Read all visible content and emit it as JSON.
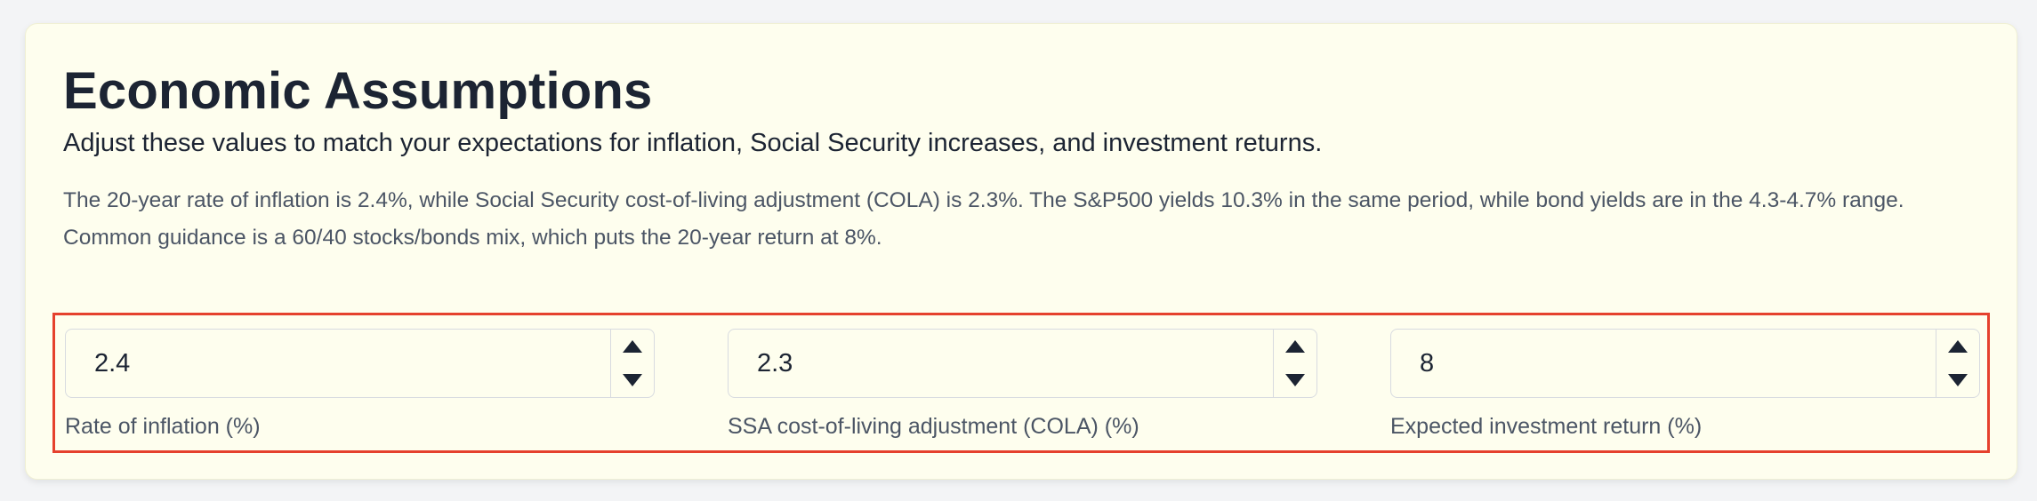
{
  "section": {
    "title": "Economic Assumptions",
    "subtitle": "Adjust these values to match your expectations for inflation, Social Security increases, and investment returns.",
    "description": "The 20-year rate of inflation is 2.4%, while Social Security cost-of-living adjustment (COLA) is 2.3%. The S&P500 yields 10.3% in the same period, while bond yields are in the 4.3-4.7% range. Common guidance is a 60/40 stocks/bonds mix, which puts the 20-year return at 8%."
  },
  "inputs": [
    {
      "value": "2.4",
      "label": "Rate of inflation (%)"
    },
    {
      "value": "2.3",
      "label": "SSA cost-of-living adjustment (COLA) (%)"
    },
    {
      "value": "8",
      "label": "Expected investment return (%)"
    }
  ],
  "icons": {
    "increment": "triangle-up-icon",
    "decrement": "triangle-down-icon"
  },
  "colors": {
    "card_background": "#fefeee",
    "heading": "#1c2433",
    "body_text": "#4b5565",
    "highlight_border": "#e5412d"
  }
}
